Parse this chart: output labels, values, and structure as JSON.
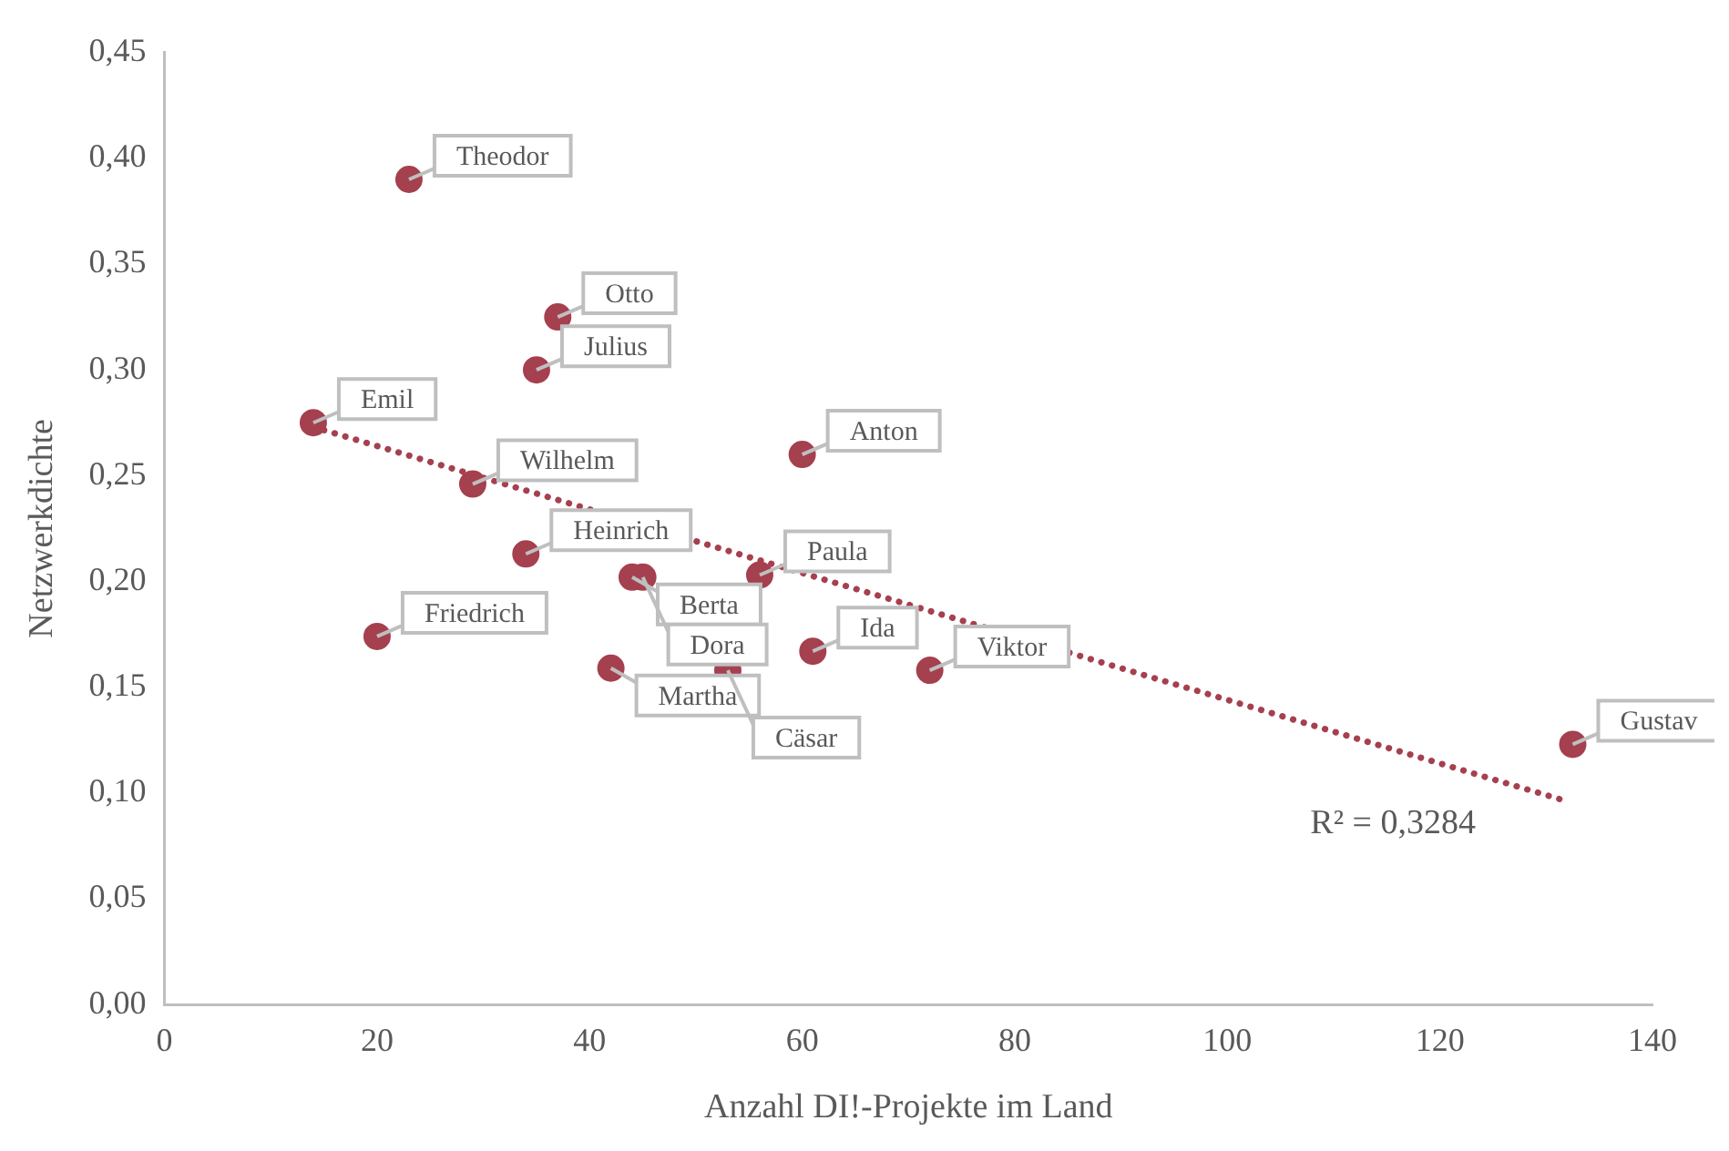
{
  "chart_data": {
    "type": "scatter",
    "xlabel": "Anzahl DI!-Projekte im Land",
    "ylabel": "Netzwerkdichte",
    "xlim": [
      0,
      140
    ],
    "xticks": [
      0,
      20,
      40,
      60,
      80,
      100,
      120,
      140
    ],
    "ylim": [
      0,
      0.45
    ],
    "yticks": [
      {
        "value": 0,
        "label": "0,00"
      },
      {
        "value": 0.05,
        "label": "0,05"
      },
      {
        "value": 0.1,
        "label": "0,10"
      },
      {
        "value": 0.15,
        "label": "0,15"
      },
      {
        "value": 0.2,
        "label": "0,20"
      },
      {
        "value": 0.25,
        "label": "0,25"
      },
      {
        "value": 0.3,
        "label": "0,30"
      },
      {
        "value": 0.35,
        "label": "0,35"
      },
      {
        "value": 0.4,
        "label": "0,40"
      },
      {
        "value": 0.45,
        "label": "0,45"
      }
    ],
    "grid": false,
    "legend": false,
    "marker": "circle",
    "series": [
      {
        "color": "#a5404f",
        "x": [
          23,
          37,
          35,
          14,
          60,
          29,
          34,
          44,
          45,
          56,
          20,
          42,
          61,
          53,
          72,
          132.5
        ],
        "values": [
          0.39,
          0.325,
          0.3,
          0.275,
          0.26,
          0.246,
          0.213,
          0.202,
          0.202,
          0.203,
          0.174,
          0.159,
          0.167,
          0.158,
          0.158,
          0.123
        ],
        "value_labels": [
          "Theodor",
          "Otto",
          "Julius",
          "Emil",
          "Anton",
          "Wilhelm",
          "Heinrich",
          "Berta",
          "Dora",
          "Paula",
          "Friedrich",
          "Martha",
          "Ida",
          "Cäsar",
          "Viktor",
          "Gustav"
        ]
      },
      {
        "type": "line",
        "color": "#a5404f",
        "line_style": "dotted",
        "marker": "none",
        "x": [
          14,
          132
        ],
        "values": [
          0.273,
          0.096
        ]
      }
    ],
    "annotations": [
      "R² = 0,3284"
    ]
  }
}
